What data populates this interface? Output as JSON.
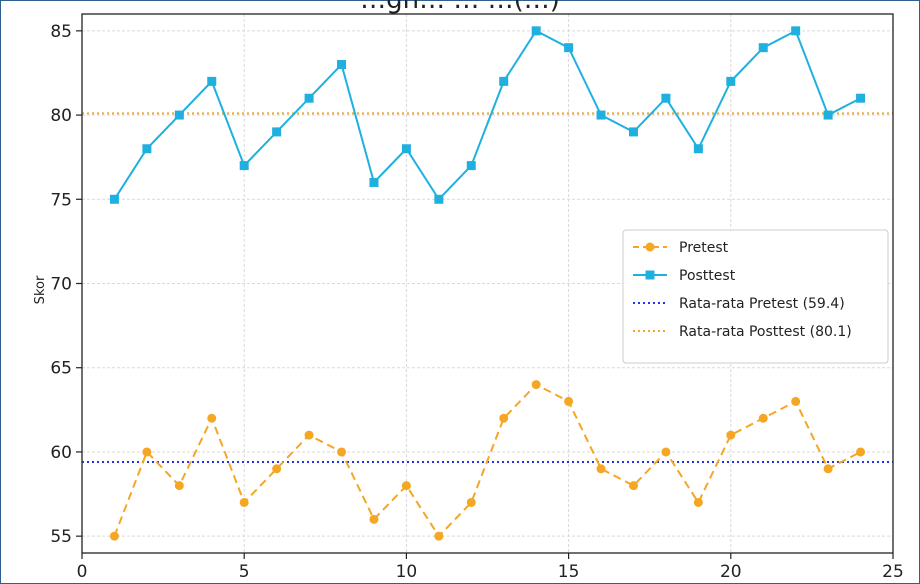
{
  "chart_data": {
    "type": "line",
    "title": "…gn… … …(…)",
    "xlabel": "",
    "ylabel": "Skor",
    "xlim": [
      0,
      25
    ],
    "ylim": [
      54,
      86
    ],
    "xticks": [
      0,
      5,
      10,
      15,
      20,
      25
    ],
    "yticks": [
      55,
      60,
      65,
      70,
      75,
      80,
      85
    ],
    "grid": true,
    "legend_position": "center-right",
    "x": [
      1,
      2,
      3,
      4,
      5,
      6,
      7,
      8,
      9,
      10,
      11,
      12,
      13,
      14,
      15,
      16,
      17,
      18,
      19,
      20,
      21,
      22,
      23,
      24
    ],
    "series": [
      {
        "name": "Pretest",
        "color": "#f5a623",
        "style": "dashed",
        "marker": "circle",
        "values": [
          55,
          60,
          58,
          62,
          57,
          59,
          61,
          60,
          56,
          58,
          55,
          57,
          62,
          64,
          63,
          59,
          58,
          60,
          57,
          61,
          62,
          63,
          59,
          60
        ]
      },
      {
        "name": "Posttest",
        "color": "#1fb0e0",
        "style": "solid",
        "marker": "square",
        "values": [
          75,
          78,
          80,
          82,
          77,
          79,
          81,
          83,
          76,
          78,
          75,
          77,
          82,
          85,
          84,
          80,
          79,
          81,
          78,
          82,
          84,
          85,
          80,
          81
        ]
      }
    ],
    "reference_lines": [
      {
        "name": "Rata-rata Pretest (59.4)",
        "value": 59.4,
        "color": "#2233ee",
        "style": "dotted"
      },
      {
        "name": "Rata-rata Posttest (80.1)",
        "value": 80.1,
        "color": "#f5a623",
        "style": "dotted"
      }
    ]
  }
}
